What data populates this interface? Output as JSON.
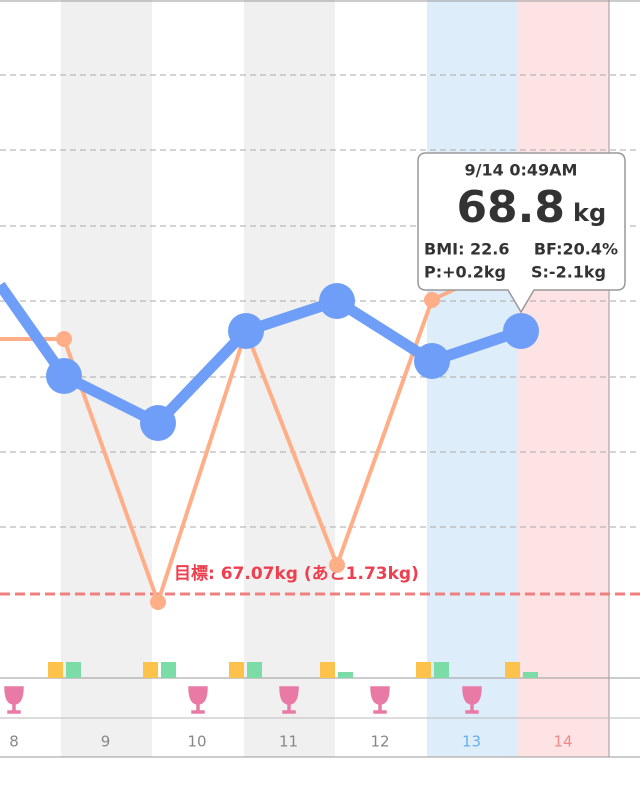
{
  "days": [
    "8",
    "9",
    "10",
    "11",
    "12",
    "13",
    "14"
  ],
  "tooltip": {
    "time": "9/14 0:49AM",
    "weight": "68.8",
    "unit": "kg",
    "bmi": "BMI: 22.6",
    "bf": "BF:20.4%",
    "p": "P:+0.2kg",
    "s": "S:-2.1kg"
  },
  "goal": "目標: 67.07kg (あと1.73kg)"
}
